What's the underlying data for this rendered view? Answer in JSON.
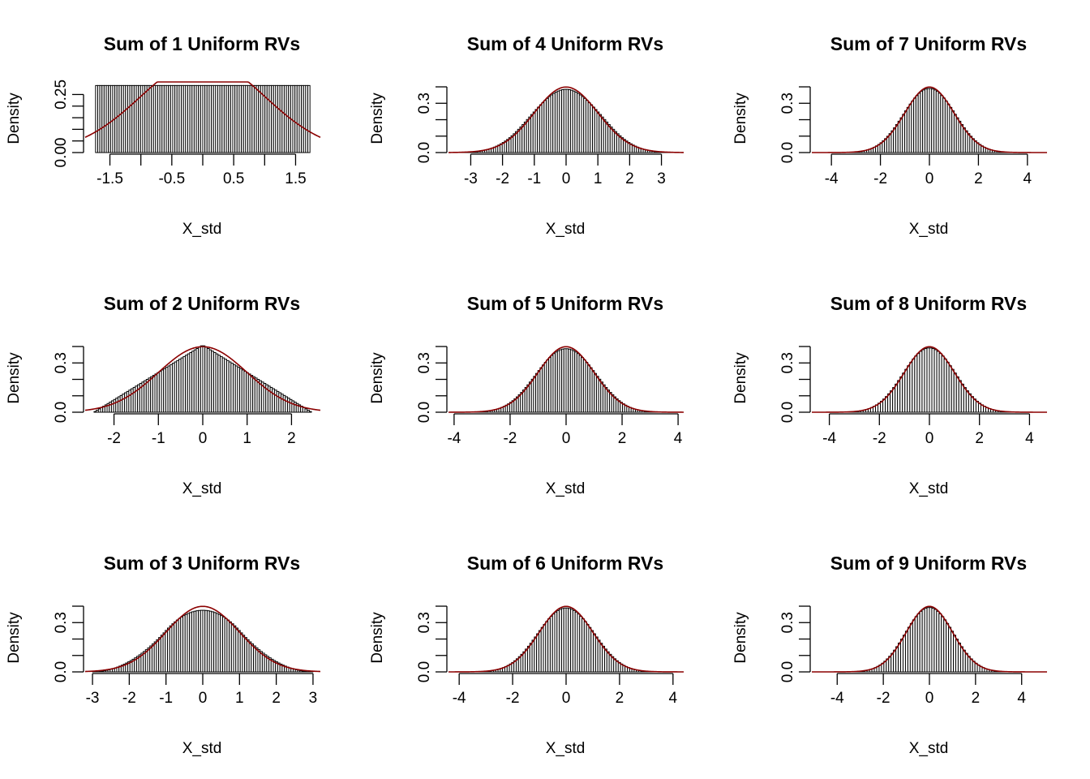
{
  "figure": {
    "panels": [
      {
        "title": "Sum of 1 Uniform RVs",
        "xlabel": "X_std",
        "ylabel": "Density"
      },
      {
        "title": "Sum of 4 Uniform RVs",
        "xlabel": "X_std",
        "ylabel": "Density"
      },
      {
        "title": "Sum of 7 Uniform RVs",
        "xlabel": "X_std",
        "ylabel": "Density"
      },
      {
        "title": "Sum of 2 Uniform RVs",
        "xlabel": "X_std",
        "ylabel": "Density"
      },
      {
        "title": "Sum of 5 Uniform RVs",
        "xlabel": "X_std",
        "ylabel": "Density"
      },
      {
        "title": "Sum of 8 Uniform RVs",
        "xlabel": "X_std",
        "ylabel": "Density"
      },
      {
        "title": "Sum of 3 Uniform RVs",
        "xlabel": "X_std",
        "ylabel": "Density"
      },
      {
        "title": "Sum of 6 Uniform RVs",
        "xlabel": "X_std",
        "ylabel": "Density"
      },
      {
        "title": "Sum of 9 Uniform RVs",
        "xlabel": "X_std",
        "ylabel": "Density"
      }
    ]
  },
  "colors": {
    "bar_fill": "#ffffff",
    "bar_edge": "#000000",
    "normal_curve": "#8b0000",
    "axis": "#000000"
  },
  "chart_data": [
    {
      "type": "bar",
      "n": 1,
      "title": "Sum of 1 Uniform RVs",
      "xlabel": "X_std",
      "ylabel": "Density",
      "xlim": [
        -1.9,
        1.9
      ],
      "ylim": [
        0,
        0.29
      ],
      "xticks": [
        -1.5,
        -1.0,
        -0.5,
        0.0,
        0.5,
        1.0,
        1.5
      ],
      "xtick_labels": [
        "-1.5",
        "",
        "-0.5",
        "",
        "0.5",
        "",
        "1.5"
      ],
      "yticks": [
        0,
        0.05,
        0.1,
        0.15,
        0.2,
        0.25
      ],
      "ytick_labels": [
        "0.00",
        "",
        "",
        "",
        "",
        "0.25"
      ],
      "overlay": "normal density (mean 0, sd 1)",
      "grid": false,
      "legend": "none"
    },
    {
      "type": "bar",
      "n": 4,
      "title": "Sum of 4 Uniform RVs",
      "xlabel": "X_std",
      "ylabel": "Density",
      "xlim": [
        -3.7,
        3.7
      ],
      "ylim": [
        0,
        0.41
      ],
      "xticks": [
        -3,
        -2,
        -1,
        0,
        1,
        2,
        3
      ],
      "xtick_labels": [
        "-3",
        "-2",
        "-1",
        "0",
        "1",
        "2",
        "3"
      ],
      "yticks": [
        0,
        0.1,
        0.2,
        0.3,
        0.4
      ],
      "ytick_labels": [
        "0.0",
        "",
        "",
        "0.3",
        ""
      ],
      "overlay": "normal density (mean 0, sd 1)",
      "grid": false,
      "legend": "none"
    },
    {
      "type": "bar",
      "n": 7,
      "title": "Sum of 7 Uniform RVs",
      "xlabel": "X_std",
      "ylabel": "Density",
      "xlim": [
        -4.8,
        4.8
      ],
      "ylim": [
        0,
        0.41
      ],
      "xticks": [
        -4,
        -2,
        0,
        2,
        4
      ],
      "xtick_labels": [
        "-4",
        "-2",
        "0",
        "2",
        "4"
      ],
      "yticks": [
        0,
        0.1,
        0.2,
        0.3,
        0.4
      ],
      "ytick_labels": [
        "0.0",
        "",
        "",
        "0.3",
        ""
      ],
      "overlay": "normal density (mean 0, sd 1)",
      "grid": false,
      "legend": "none"
    },
    {
      "type": "bar",
      "n": 2,
      "title": "Sum of 2 Uniform RVs",
      "xlabel": "X_std",
      "ylabel": "Density",
      "xlim": [
        -2.65,
        2.65
      ],
      "ylim": [
        0,
        0.41
      ],
      "xticks": [
        -2,
        -1,
        0,
        1,
        2
      ],
      "xtick_labels": [
        "-2",
        "-1",
        "0",
        "1",
        "2"
      ],
      "yticks": [
        0,
        0.1,
        0.2,
        0.3,
        0.4
      ],
      "ytick_labels": [
        "0.0",
        "",
        "",
        "0.3",
        ""
      ],
      "overlay": "normal density (mean 0, sd 1)",
      "grid": false,
      "legend": "none"
    },
    {
      "type": "bar",
      "n": 5,
      "title": "Sum of 5 Uniform RVs",
      "xlabel": "X_std",
      "ylabel": "Density",
      "xlim": [
        -4.2,
        4.2
      ],
      "ylim": [
        0,
        0.41
      ],
      "xticks": [
        -4,
        -2,
        0,
        2,
        4
      ],
      "xtick_labels": [
        "-4",
        "-2",
        "0",
        "2",
        "4"
      ],
      "yticks": [
        0,
        0.1,
        0.2,
        0.3,
        0.4
      ],
      "ytick_labels": [
        "0.0",
        "",
        "",
        "0.3",
        ""
      ],
      "overlay": "normal density (mean 0, sd 1)",
      "grid": false,
      "legend": "none"
    },
    {
      "type": "bar",
      "n": 8,
      "title": "Sum of 8 Uniform RVs",
      "xlabel": "X_std",
      "ylabel": "Density",
      "xlim": [
        -4.7,
        4.7
      ],
      "ylim": [
        0,
        0.41
      ],
      "xticks": [
        -4,
        -2,
        0,
        2,
        4
      ],
      "xtick_labels": [
        "-4",
        "-2",
        "0",
        "2",
        "4"
      ],
      "yticks": [
        0,
        0.1,
        0.2,
        0.3,
        0.4
      ],
      "ytick_labels": [
        "0.0",
        "",
        "",
        "0.3",
        ""
      ],
      "overlay": "normal density (mean 0, sd 1)",
      "grid": false,
      "legend": "none"
    },
    {
      "type": "bar",
      "n": 3,
      "title": "Sum of 3 Uniform RVs",
      "xlabel": "X_std",
      "ylabel": "Density",
      "xlim": [
        -3.2,
        3.2
      ],
      "ylim": [
        0,
        0.41
      ],
      "xticks": [
        -3,
        -2,
        -1,
        0,
        1,
        2,
        3
      ],
      "xtick_labels": [
        "-3",
        "-2",
        "-1",
        "0",
        "1",
        "2",
        "3"
      ],
      "yticks": [
        0,
        0.1,
        0.2,
        0.3,
        0.4
      ],
      "ytick_labels": [
        "0.0",
        "",
        "",
        "0.3",
        ""
      ],
      "overlay": "normal density (mean 0, sd 1)",
      "grid": false,
      "legend": "none"
    },
    {
      "type": "bar",
      "n": 6,
      "title": "Sum of 6 Uniform RVs",
      "xlabel": "X_std",
      "ylabel": "Density",
      "xlim": [
        -4.4,
        4.4
      ],
      "ylim": [
        0,
        0.41
      ],
      "xticks": [
        -4,
        -2,
        0,
        2,
        4
      ],
      "xtick_labels": [
        "-4",
        "-2",
        "0",
        "2",
        "4"
      ],
      "yticks": [
        0,
        0.1,
        0.2,
        0.3,
        0.4
      ],
      "ytick_labels": [
        "0.0",
        "",
        "",
        "0.3",
        ""
      ],
      "overlay": "normal density (mean 0, sd 1)",
      "grid": false,
      "legend": "none"
    },
    {
      "type": "bar",
      "n": 9,
      "title": "Sum of 9 Uniform RVs",
      "xlabel": "X_std",
      "ylabel": "Density",
      "xlim": [
        -5.1,
        5.1
      ],
      "ylim": [
        0,
        0.41
      ],
      "xticks": [
        -4,
        -2,
        0,
        2,
        4
      ],
      "xtick_labels": [
        "-4",
        "-2",
        "0",
        "2",
        "4"
      ],
      "yticks": [
        0,
        0.1,
        0.2,
        0.3,
        0.4
      ],
      "ytick_labels": [
        "0.0",
        "",
        "",
        "0.3",
        ""
      ],
      "overlay": "normal density (mean 0, sd 1)",
      "grid": false,
      "legend": "none"
    }
  ]
}
